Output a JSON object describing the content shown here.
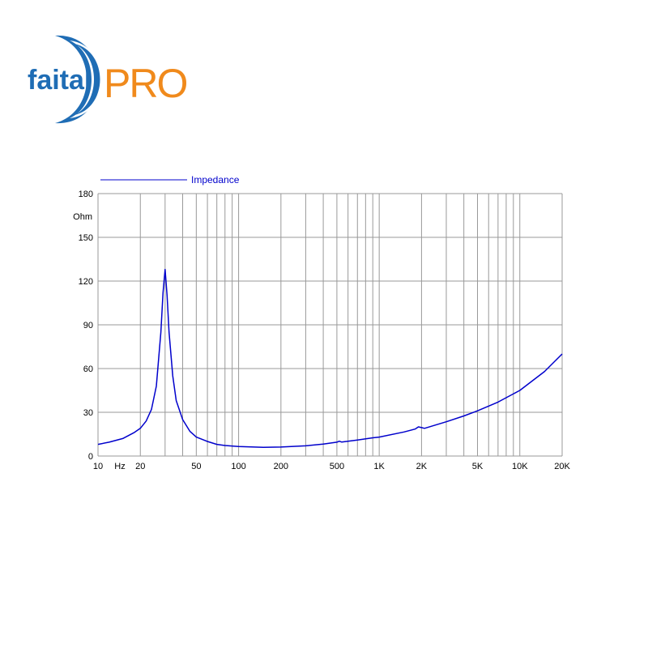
{
  "brand": {
    "name_part1": "faital",
    "name_part2": "PRO",
    "color_blue": "#1f6db5",
    "color_orange": "#f08a1c"
  },
  "chart_data": {
    "type": "line",
    "title": "",
    "xlabel": "Hz",
    "ylabel": "Ohm",
    "x_scale": "log",
    "xlim": [
      10,
      20000
    ],
    "ylim": [
      0,
      180
    ],
    "grid": true,
    "legend": {
      "placement": "top-left",
      "entries": [
        "Impedance"
      ]
    },
    "x_ticks": [
      {
        "value": 10,
        "label": "10"
      },
      {
        "value": 20,
        "label": "20"
      },
      {
        "value": 50,
        "label": "50"
      },
      {
        "value": 100,
        "label": "100"
      },
      {
        "value": 200,
        "label": "200"
      },
      {
        "value": 500,
        "label": "500"
      },
      {
        "value": 1000,
        "label": "1K"
      },
      {
        "value": 2000,
        "label": "2K"
      },
      {
        "value": 5000,
        "label": "5K"
      },
      {
        "value": 10000,
        "label": "10K"
      },
      {
        "value": 20000,
        "label": "20K"
      }
    ],
    "y_ticks": [
      0,
      30,
      60,
      90,
      120,
      150,
      180
    ],
    "series": [
      {
        "name": "Impedance",
        "color": "#0000cc",
        "points": [
          [
            10,
            8
          ],
          [
            12,
            9.5
          ],
          [
            15,
            12
          ],
          [
            18,
            16
          ],
          [
            20,
            19
          ],
          [
            22,
            24
          ],
          [
            24,
            32
          ],
          [
            26,
            48
          ],
          [
            28,
            85
          ],
          [
            29,
            112
          ],
          [
            30,
            128
          ],
          [
            31,
            110
          ],
          [
            32,
            85
          ],
          [
            34,
            55
          ],
          [
            36,
            38
          ],
          [
            40,
            25
          ],
          [
            45,
            17
          ],
          [
            50,
            13
          ],
          [
            60,
            10
          ],
          [
            70,
            8
          ],
          [
            80,
            7.2
          ],
          [
            100,
            6.5
          ],
          [
            150,
            6
          ],
          [
            200,
            6.2
          ],
          [
            300,
            7
          ],
          [
            400,
            8.2
          ],
          [
            500,
            9.5
          ],
          [
            520,
            10.2
          ],
          [
            540,
            9.6
          ],
          [
            700,
            11
          ],
          [
            900,
            12.5
          ],
          [
            1000,
            13
          ],
          [
            1500,
            16.5
          ],
          [
            1800,
            18.5
          ],
          [
            1900,
            20
          ],
          [
            2000,
            19.5
          ],
          [
            2100,
            19
          ],
          [
            3000,
            23.5
          ],
          [
            4000,
            27.5
          ],
          [
            5000,
            31
          ],
          [
            7000,
            37
          ],
          [
            10000,
            45
          ],
          [
            15000,
            58
          ],
          [
            20000,
            70
          ]
        ]
      }
    ]
  }
}
